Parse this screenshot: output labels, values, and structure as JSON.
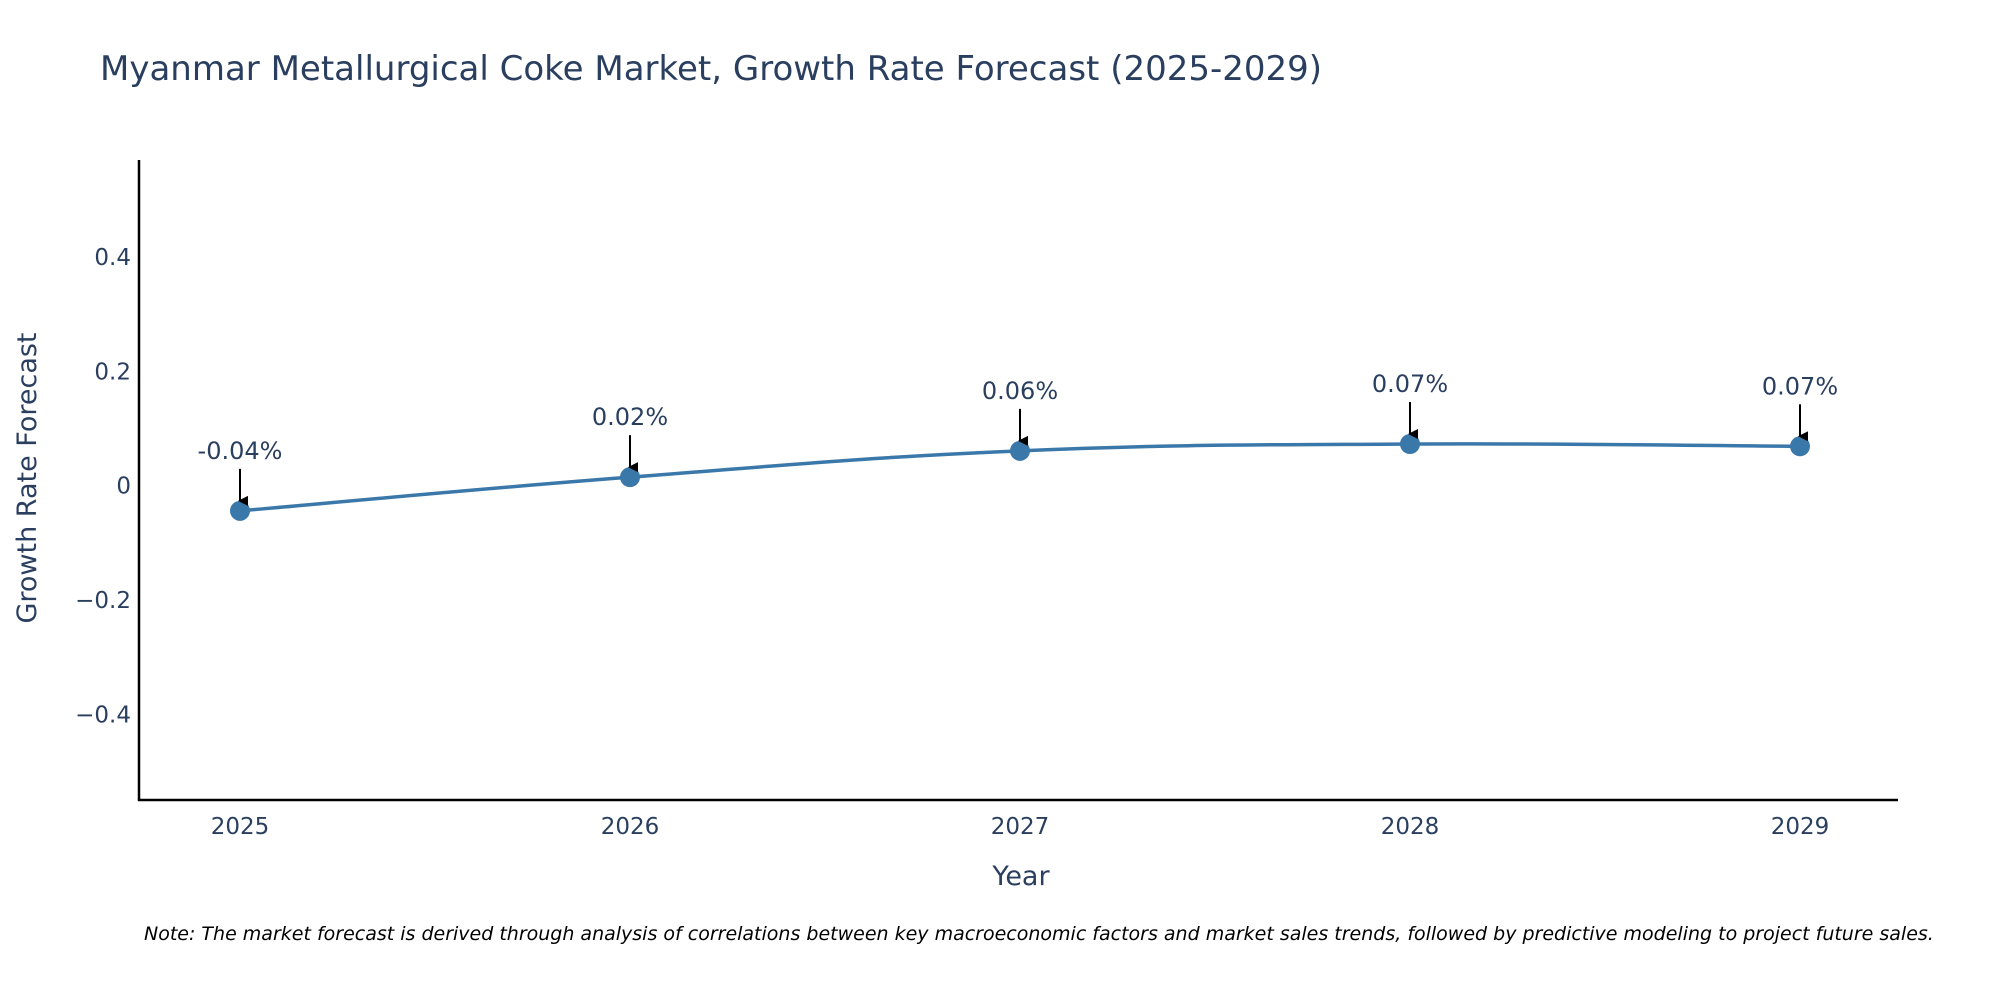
{
  "chart_data": {
    "type": "line",
    "title": "Myanmar Metallurgical Coke Market, Growth Rate Forecast (2025-2029)",
    "xlabel": "Year",
    "ylabel": "Growth Rate Forecast",
    "categories": [
      "2025",
      "2026",
      "2027",
      "2028",
      "2029"
    ],
    "series": [
      {
        "name": "Growth Rate Forecast",
        "values": [
          -0.044,
          0.015,
          0.061,
          0.073,
          0.069
        ],
        "labels": [
          "-0.04%",
          "0.02%",
          "0.06%",
          "0.07%",
          "0.07%"
        ]
      }
    ],
    "ylim": [
      -0.55,
      0.57
    ],
    "yticks": [
      -0.4,
      -0.2,
      0,
      0.2,
      0.4
    ],
    "ytick_labels": [
      "−0.4",
      "−0.2",
      "0",
      "0.2",
      "0.4"
    ],
    "grid": false,
    "line_color": "#3b78aa",
    "note": "Note: The market forecast is derived through analysis of correlations between key macroeconomic factors and market sales trends, followed by predictive modeling to project future sales."
  }
}
